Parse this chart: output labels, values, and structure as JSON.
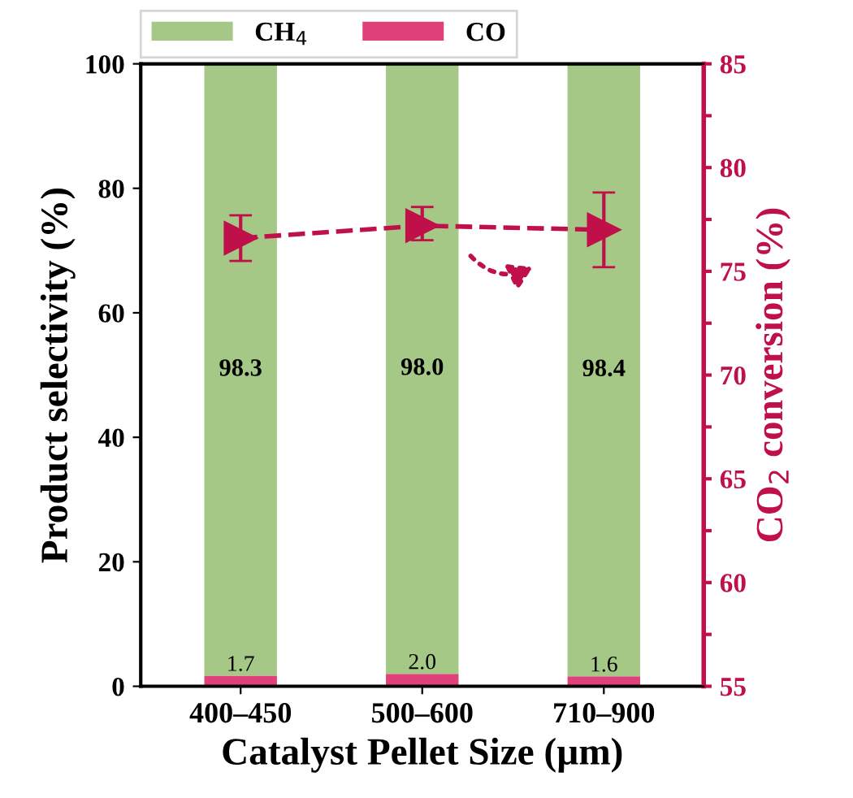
{
  "chart_data": {
    "type": "bar",
    "stacked": true,
    "xlabel": "Catalyst Pellet Size (µm)",
    "ylabel": "Product selectivity (%)",
    "y2label": "CO$_{2}$ conversion (%)",
    "categories": [
      "400–450",
      "500–600",
      "710–900"
    ],
    "series": [
      {
        "name": "CO",
        "color": "#e0417a",
        "values": [
          1.7,
          2.0,
          1.6
        ],
        "value_labels": [
          "1.7",
          "2.0",
          "1.6"
        ]
      },
      {
        "name": "CH$_{4}$",
        "color": "#a5c887",
        "values": [
          98.3,
          98.0,
          98.4
        ],
        "value_labels": [
          "98.3",
          "98.0",
          "98.4"
        ]
      },
      {
        "type": "line",
        "axis": "y2",
        "color": "#c0104a",
        "values": [
          76.6,
          77.2,
          77.0
        ],
        "errors": [
          [
            75.5,
            77.7
          ],
          [
            76.5,
            78.1
          ],
          [
            75.2,
            78.8
          ]
        ],
        "marker": "triangle",
        "line_style": "dashed"
      }
    ],
    "ylim": [
      0,
      100
    ],
    "yticks": [
      0,
      20,
      40,
      60,
      80,
      100
    ],
    "y2lim": [
      55,
      85
    ],
    "y2ticks": [
      55,
      {
        "value": 57.5,
        "label": null
      },
      60,
      {
        "value": 62.5,
        "label": null
      },
      65,
      {
        "value": 67.5,
        "label": null
      },
      70,
      {
        "value": 72.5,
        "label": null
      },
      75,
      {
        "value": 77.5,
        "label": null
      },
      80,
      {
        "value": 82.5,
        "label": null
      },
      85
    ],
    "legend": "top left",
    "grid": false
  }
}
